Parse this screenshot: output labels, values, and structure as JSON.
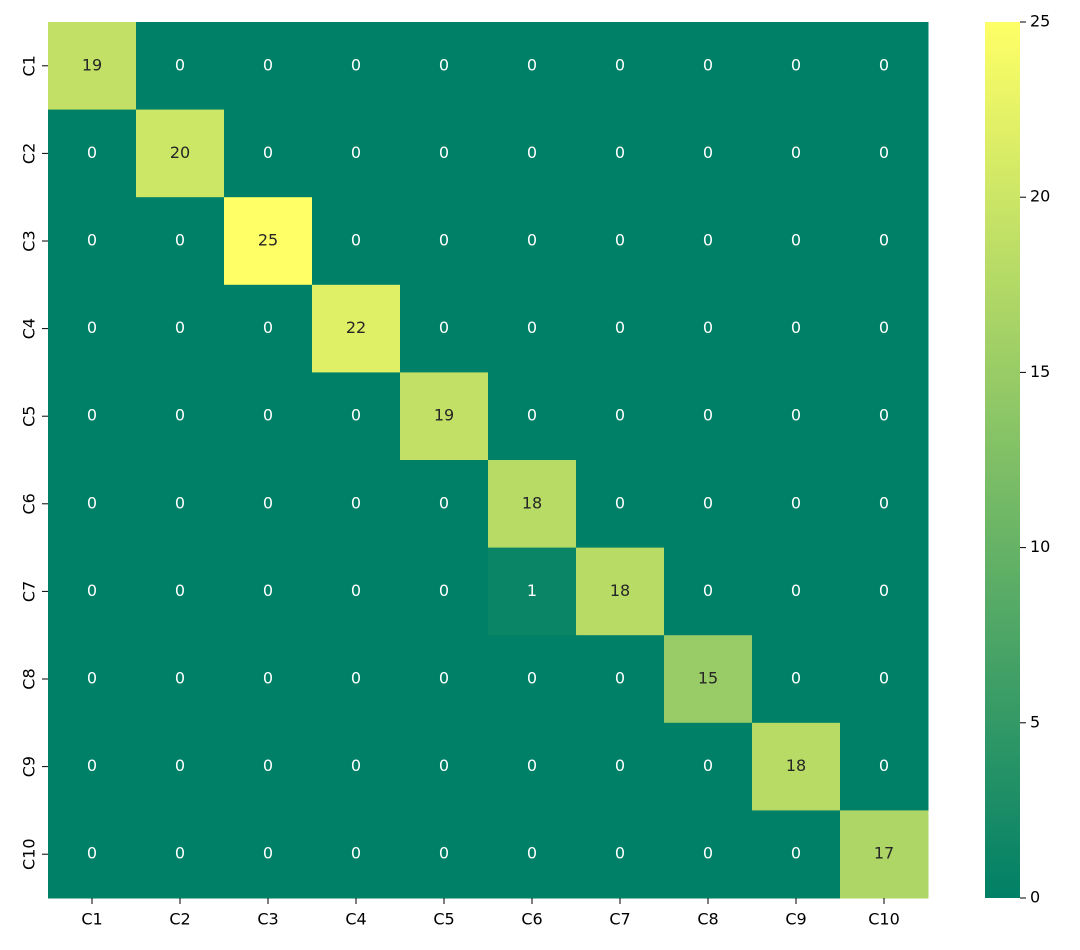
{
  "chart_data": {
    "type": "heatmap",
    "x": [
      "C1",
      "C2",
      "C3",
      "C4",
      "C5",
      "C6",
      "C7",
      "C8",
      "C9",
      "C10"
    ],
    "y": [
      "C1",
      "C2",
      "C3",
      "C4",
      "C5",
      "C6",
      "C7",
      "C8",
      "C9",
      "C10"
    ],
    "values": [
      [
        19,
        0,
        0,
        0,
        0,
        0,
        0,
        0,
        0,
        0
      ],
      [
        0,
        20,
        0,
        0,
        0,
        0,
        0,
        0,
        0,
        0
      ],
      [
        0,
        0,
        25,
        0,
        0,
        0,
        0,
        0,
        0,
        0
      ],
      [
        0,
        0,
        0,
        22,
        0,
        0,
        0,
        0,
        0,
        0
      ],
      [
        0,
        0,
        0,
        0,
        19,
        0,
        0,
        0,
        0,
        0
      ],
      [
        0,
        0,
        0,
        0,
        0,
        18,
        0,
        0,
        0,
        0
      ],
      [
        0,
        0,
        0,
        0,
        0,
        1,
        18,
        0,
        0,
        0
      ],
      [
        0,
        0,
        0,
        0,
        0,
        0,
        0,
        15,
        0,
        0
      ],
      [
        0,
        0,
        0,
        0,
        0,
        0,
        0,
        0,
        18,
        0
      ],
      [
        0,
        0,
        0,
        0,
        0,
        0,
        0,
        0,
        0,
        17
      ]
    ],
    "colormap": "summer",
    "zlim": [
      0,
      25
    ],
    "zticks": [
      0,
      5,
      10,
      15,
      20,
      25
    ]
  }
}
